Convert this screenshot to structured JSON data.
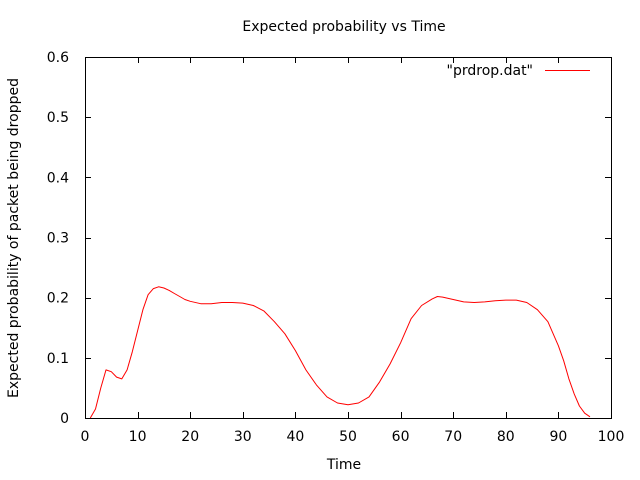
{
  "chart_data": {
    "type": "line",
    "title": "Expected probability vs Time",
    "xlabel": "Time",
    "ylabel": "Expected probability of packet being dropped",
    "xlim": [
      0,
      100
    ],
    "ylim": [
      0,
      0.6
    ],
    "xticks": [
      0,
      10,
      20,
      30,
      40,
      50,
      60,
      70,
      80,
      90,
      100
    ],
    "yticks": [
      0,
      0.1,
      0.2,
      0.3,
      0.4,
      0.5,
      0.6
    ],
    "ytick_labels": [
      "0",
      "0.1",
      "0.2",
      "0.3",
      "0.4",
      "0.5",
      "0.6"
    ],
    "grid": false,
    "legend": "top-right",
    "series": [
      {
        "name": "\"prdrop.dat\"",
        "color": "#ff0000",
        "x": [
          1,
          2,
          3,
          4,
          5,
          6,
          7,
          8,
          9,
          10,
          11,
          12,
          13,
          14,
          15,
          16,
          17,
          18,
          19,
          20,
          22,
          24,
          26,
          28,
          30,
          32,
          34,
          36,
          38,
          40,
          42,
          44,
          46,
          48,
          50,
          52,
          54,
          56,
          58,
          60,
          62,
          64,
          66,
          67,
          68,
          70,
          72,
          74,
          76,
          78,
          80,
          82,
          84,
          86,
          88,
          90,
          91,
          92,
          93,
          94,
          95,
          96
        ],
        "y": [
          0.0,
          0.015,
          0.05,
          0.08,
          0.077,
          0.068,
          0.065,
          0.08,
          0.11,
          0.145,
          0.18,
          0.205,
          0.215,
          0.218,
          0.216,
          0.212,
          0.207,
          0.202,
          0.197,
          0.194,
          0.19,
          0.19,
          0.192,
          0.192,
          0.191,
          0.187,
          0.178,
          0.16,
          0.14,
          0.112,
          0.08,
          0.055,
          0.035,
          0.025,
          0.022,
          0.025,
          0.035,
          0.06,
          0.09,
          0.125,
          0.165,
          0.187,
          0.198,
          0.202,
          0.201,
          0.197,
          0.193,
          0.192,
          0.193,
          0.195,
          0.196,
          0.196,
          0.192,
          0.18,
          0.16,
          0.12,
          0.095,
          0.065,
          0.04,
          0.02,
          0.008,
          0.002
        ]
      }
    ]
  }
}
